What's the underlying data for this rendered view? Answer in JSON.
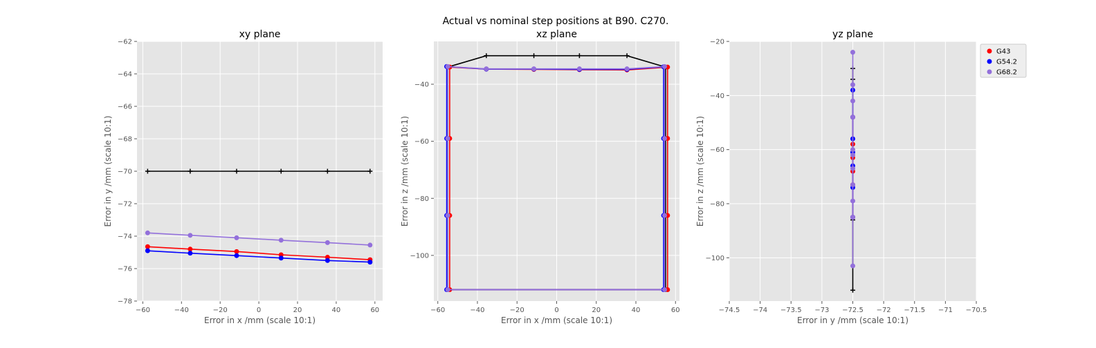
{
  "figure": {
    "suptitle": "Actual vs nominal step positions at B90. C270."
  },
  "colors": {
    "G43": "#ff0000",
    "G54.2": "#0000ff",
    "G68.2": "#9370db",
    "nominal": "#000000",
    "axes_bg": "#e5e5e5",
    "grid": "#ffffff"
  },
  "legend": {
    "position": "right of yz plane",
    "entries": [
      "G43",
      "G54.2",
      "G68.2"
    ]
  },
  "chart_data": [
    {
      "type": "line",
      "title": "xy plane",
      "xlabel": "Error in x /mm (scale 10:1)",
      "ylabel": "Error in y /mm (scale 10:1)",
      "xlim": [
        -63,
        64
      ],
      "ylim": [
        -78,
        -62
      ],
      "xticks": [
        -60,
        -40,
        -20,
        0,
        20,
        40,
        60
      ],
      "yticks": [
        -78,
        -76,
        -74,
        -72,
        -70,
        -68,
        -66,
        -64,
        -62
      ],
      "grid": true,
      "series": [
        {
          "name": "nominal",
          "marker": "plus",
          "x": [
            -57.5,
            -35.5,
            -11.5,
            11.5,
            35.5,
            57.5
          ],
          "y": [
            -70,
            -70,
            -70,
            -70,
            -70,
            -70
          ]
        },
        {
          "name": "G43",
          "marker": "dot",
          "x": [
            -57.5,
            -35.5,
            -11.5,
            11.5,
            35.5,
            57.5
          ],
          "y": [
            -74.65,
            -74.8,
            -74.95,
            -75.15,
            -75.3,
            -75.45
          ]
        },
        {
          "name": "G54.2",
          "marker": "dot",
          "x": [
            -57.5,
            -35.5,
            -11.5,
            11.5,
            35.5,
            57.5
          ],
          "y": [
            -74.9,
            -75.05,
            -75.2,
            -75.35,
            -75.5,
            -75.6
          ]
        },
        {
          "name": "G68.2",
          "marker": "dot",
          "x": [
            -57.5,
            -35.5,
            -11.5,
            11.5,
            35.5,
            57.5
          ],
          "y": [
            -73.8,
            -73.95,
            -74.1,
            -74.25,
            -74.4,
            -74.55
          ]
        }
      ]
    },
    {
      "type": "line",
      "title": "xz plane",
      "xlabel": "Error in x /mm (scale 10:1)",
      "ylabel": "Error in z /mm (scale 10:1)",
      "xlim": [
        -62,
        62
      ],
      "ylim": [
        -116,
        -25
      ],
      "xticks": [
        -60,
        -40,
        -20,
        0,
        20,
        40,
        60
      ],
      "yticks": [
        -100,
        -80,
        -60,
        -40
      ],
      "grid": true,
      "series": [
        {
          "name": "nominal",
          "marker": "plus",
          "x": [
            -55,
            -35.5,
            -11.5,
            11.5,
            35.5,
            55,
            55,
            55,
            55,
            -55,
            -55,
            -55,
            -55
          ],
          "y": [
            -34,
            -30,
            -30,
            -30,
            -30,
            -34,
            -59,
            -86,
            -112,
            -112,
            -86,
            -59,
            -34
          ]
        },
        {
          "name": "G43",
          "marker": "dot",
          "x": [
            -54,
            -35.5,
            -11.5,
            11.5,
            35.5,
            56,
            56,
            56,
            56,
            -54,
            -54,
            -54,
            -54
          ],
          "y": [
            -34,
            -34.7,
            -34.8,
            -34.9,
            -35,
            -34,
            -59,
            -86,
            -112,
            -112,
            -86,
            -59,
            -34
          ]
        },
        {
          "name": "G54.2",
          "marker": "dot",
          "x": [
            -55.5,
            -35.5,
            -11.5,
            11.5,
            35.5,
            54,
            54,
            54,
            54,
            -55.5,
            -55.5,
            -55.5,
            -55.5
          ],
          "y": [
            -33.8,
            -34.7,
            -34.7,
            -34.8,
            -34.8,
            -33.9,
            -59,
            -86,
            -112,
            -112,
            -86,
            -59,
            -33.8
          ]
        },
        {
          "name": "G68.2",
          "marker": "dot",
          "x": [
            -55,
            -35.5,
            -11.5,
            11.5,
            35.5,
            54.5,
            54.5,
            54.5,
            54.5,
            -55,
            -55,
            -55,
            -55
          ],
          "y": [
            -33.8,
            -34.6,
            -34.6,
            -34.6,
            -34.6,
            -33.8,
            -59,
            -86,
            -112,
            -112,
            -86,
            -59,
            -33.8
          ]
        }
      ]
    },
    {
      "type": "line",
      "title": "yz plane",
      "xlabel": "Error in y /mm (scale 10:1)",
      "ylabel": "Error in z /mm (scale 10:1)",
      "xlim": [
        -74.5,
        -70.5
      ],
      "ylim": [
        -116,
        -20
      ],
      "xticks": [
        -74.5,
        -74.0,
        -73.5,
        -73.0,
        -72.5,
        -72.0,
        -71.5,
        -71.0,
        -70.5
      ],
      "yticks": [
        -100,
        -80,
        -60,
        -40,
        -20
      ],
      "grid": true,
      "series": [
        {
          "name": "nominal",
          "marker": "plus",
          "x": [
            -72.5,
            -72.5,
            -72.5,
            -72.5
          ],
          "y": [
            -30,
            -34,
            -86,
            -112
          ]
        },
        {
          "name": "G43",
          "marker": "dot",
          "x": [
            -72.5,
            -72.5,
            -72.5,
            -72.5,
            -72.5,
            -72.5
          ],
          "y": [
            -48,
            -58,
            -63,
            -68,
            -73,
            -85
          ]
        },
        {
          "name": "G54.2",
          "marker": "dot",
          "x": [
            -72.5,
            -72.5,
            -72.5,
            -72.5,
            -72.5,
            -72.5,
            -72.5
          ],
          "y": [
            -38,
            -48,
            -56,
            -61,
            -66,
            -74,
            -85
          ]
        },
        {
          "name": "G68.2",
          "marker": "dot",
          "x": [
            -72.5,
            -72.5,
            -72.5,
            -72.5,
            -72.5,
            -72.5,
            -72.5,
            -72.5,
            -72.5,
            -72.5,
            -72.5
          ],
          "y": [
            -24,
            -36,
            -42,
            -48,
            -60,
            -62,
            -67,
            -73,
            -79,
            -85,
            -103
          ]
        }
      ]
    }
  ]
}
